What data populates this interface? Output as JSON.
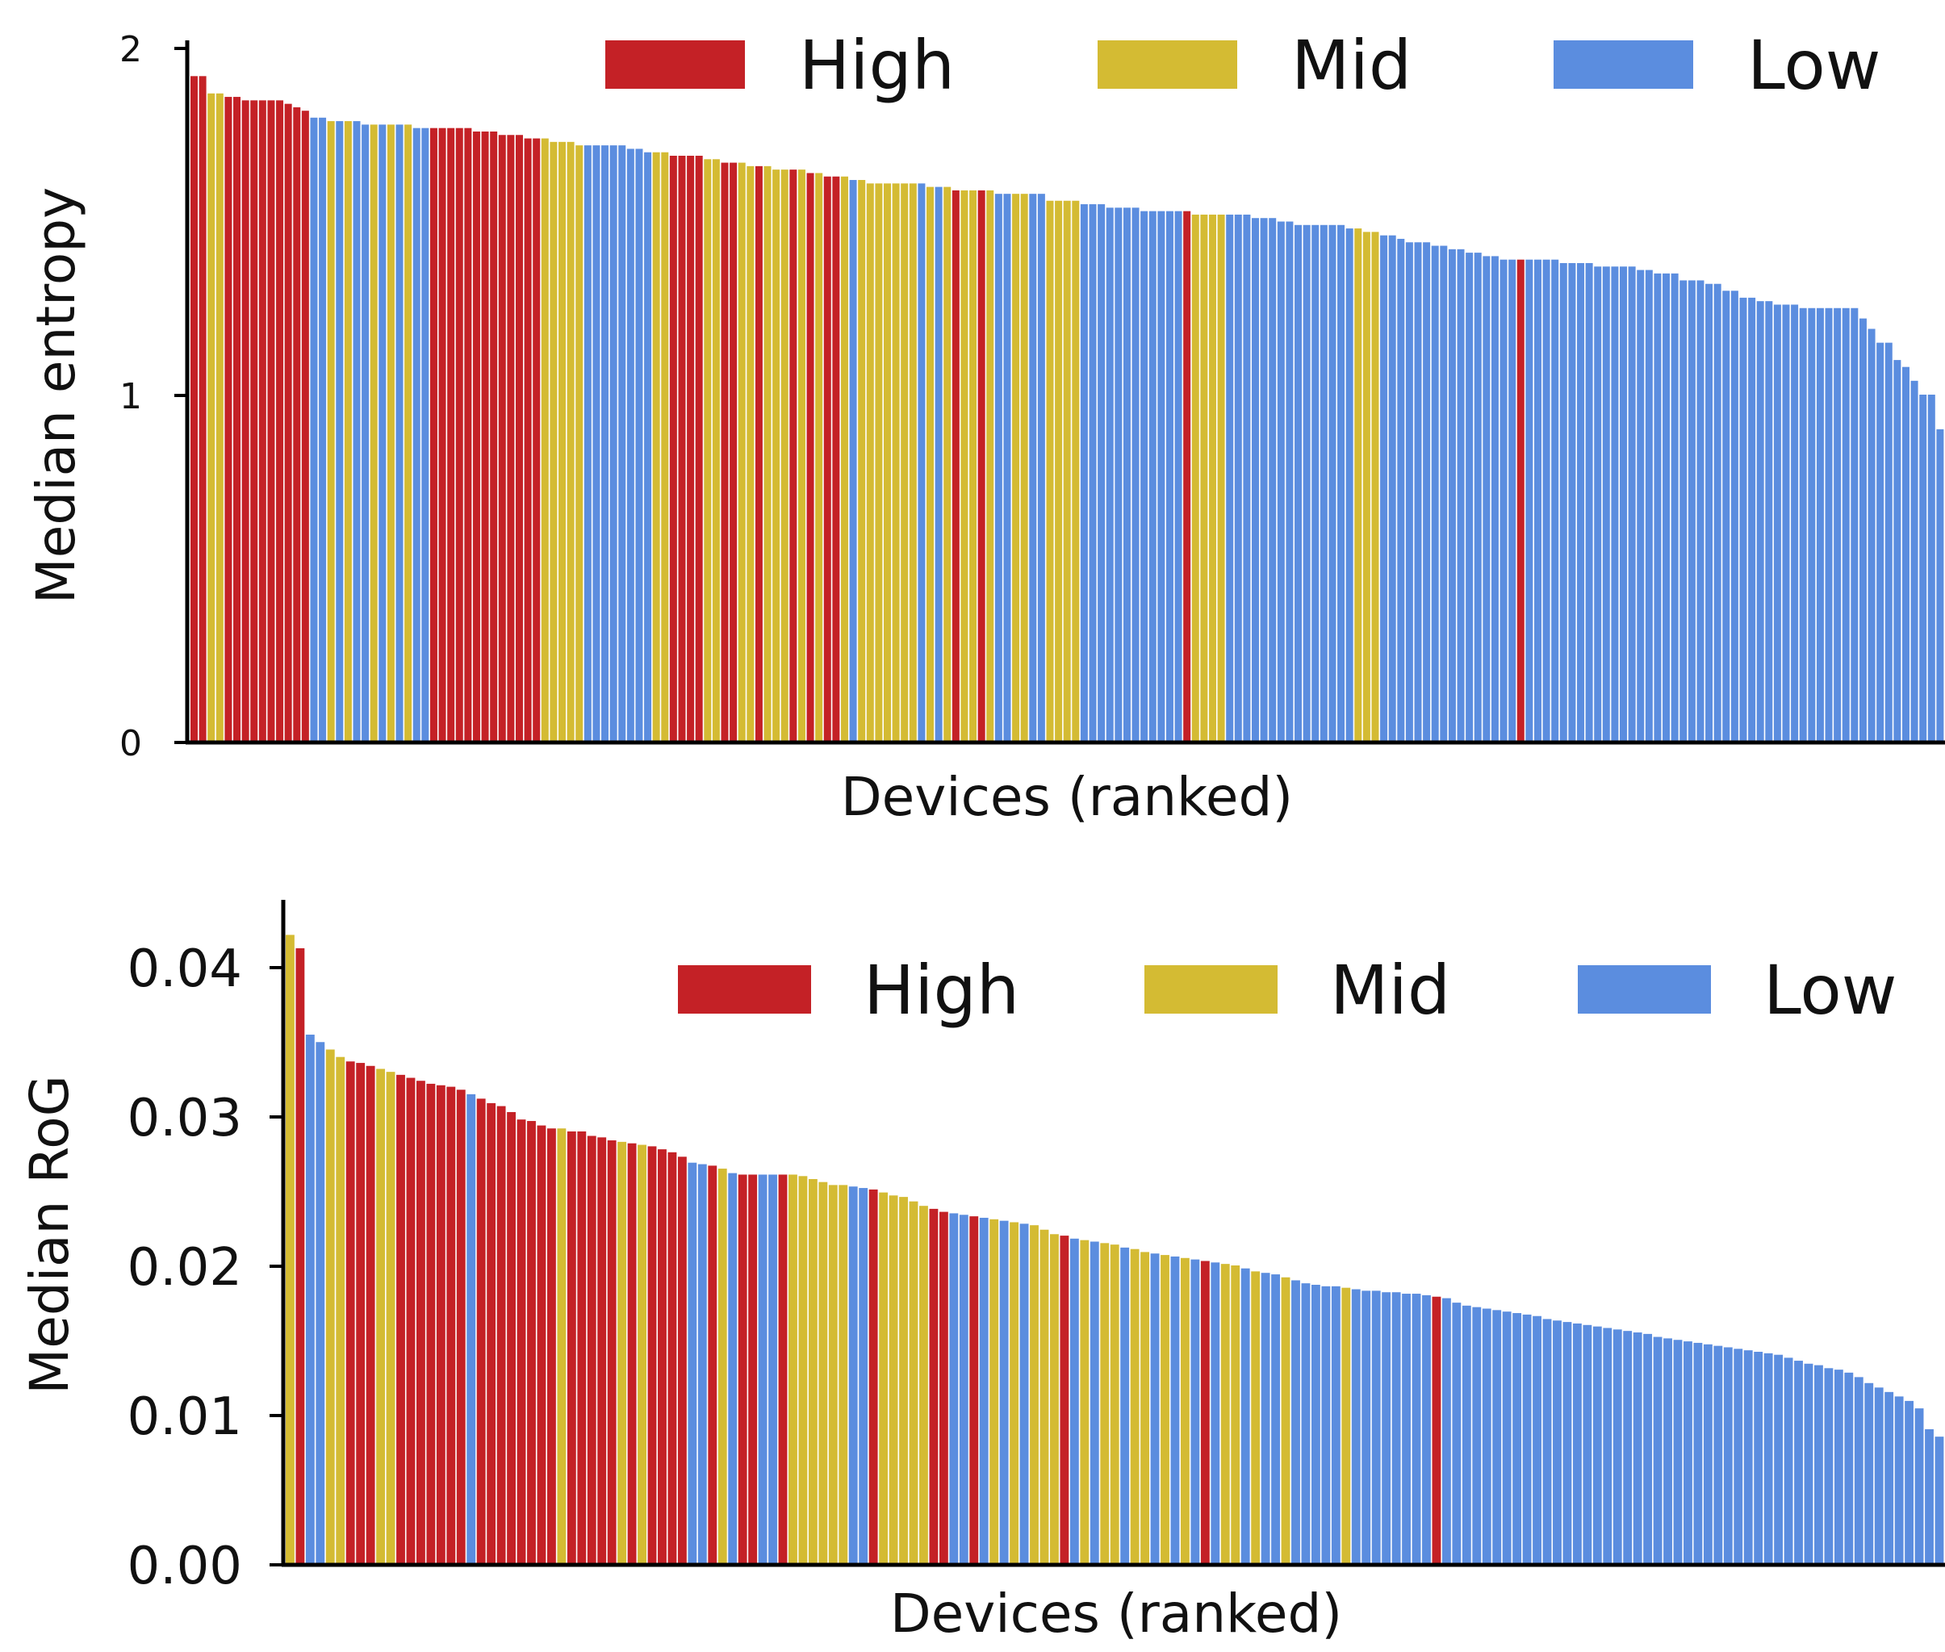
{
  "colors": {
    "High": "#c42126",
    "Mid": "#d4bb33",
    "Low": "#5b8ddf",
    "axis": "#000000"
  },
  "legend": [
    {
      "key": "High",
      "label": "High"
    },
    {
      "key": "Mid",
      "label": "Mid"
    },
    {
      "key": "Low",
      "label": "Low"
    }
  ],
  "chart_data": [
    {
      "type": "bar",
      "xlabel": "Devices (ranked)",
      "ylabel": "Median entropy",
      "ylim": [
        0,
        2
      ],
      "yticks": [
        0,
        1,
        2
      ],
      "ytick_labels": [
        "0",
        "1",
        "2"
      ],
      "legend_position": "top",
      "grid": false,
      "values": [
        1.92,
        1.92,
        1.87,
        1.87,
        1.86,
        1.86,
        1.85,
        1.85,
        1.85,
        1.85,
        1.85,
        1.84,
        1.83,
        1.82,
        1.8,
        1.8,
        1.79,
        1.79,
        1.79,
        1.79,
        1.78,
        1.78,
        1.78,
        1.78,
        1.78,
        1.78,
        1.77,
        1.77,
        1.77,
        1.77,
        1.77,
        1.77,
        1.77,
        1.76,
        1.76,
        1.76,
        1.75,
        1.75,
        1.75,
        1.74,
        1.74,
        1.74,
        1.73,
        1.73,
        1.73,
        1.72,
        1.72,
        1.72,
        1.72,
        1.72,
        1.72,
        1.71,
        1.71,
        1.7,
        1.7,
        1.7,
        1.69,
        1.69,
        1.69,
        1.69,
        1.68,
        1.68,
        1.67,
        1.67,
        1.67,
        1.66,
        1.66,
        1.66,
        1.65,
        1.65,
        1.65,
        1.65,
        1.64,
        1.64,
        1.63,
        1.63,
        1.63,
        1.62,
        1.62,
        1.61,
        1.61,
        1.61,
        1.61,
        1.61,
        1.61,
        1.61,
        1.6,
        1.6,
        1.6,
        1.59,
        1.59,
        1.59,
        1.59,
        1.59,
        1.58,
        1.58,
        1.58,
        1.58,
        1.58,
        1.58,
        1.56,
        1.56,
        1.56,
        1.56,
        1.55,
        1.55,
        1.55,
        1.54,
        1.54,
        1.54,
        1.54,
        1.53,
        1.53,
        1.53,
        1.53,
        1.53,
        1.53,
        1.52,
        1.52,
        1.52,
        1.52,
        1.52,
        1.52,
        1.52,
        1.51,
        1.51,
        1.51,
        1.5,
        1.5,
        1.49,
        1.49,
        1.49,
        1.49,
        1.49,
        1.49,
        1.48,
        1.48,
        1.47,
        1.47,
        1.46,
        1.46,
        1.45,
        1.44,
        1.44,
        1.44,
        1.43,
        1.43,
        1.42,
        1.42,
        1.41,
        1.41,
        1.4,
        1.4,
        1.39,
        1.39,
        1.39,
        1.39,
        1.39,
        1.39,
        1.39,
        1.38,
        1.38,
        1.38,
        1.38,
        1.37,
        1.37,
        1.37,
        1.37,
        1.37,
        1.36,
        1.36,
        1.35,
        1.35,
        1.35,
        1.33,
        1.33,
        1.33,
        1.32,
        1.32,
        1.3,
        1.3,
        1.28,
        1.28,
        1.27,
        1.27,
        1.26,
        1.26,
        1.26,
        1.25,
        1.25,
        1.25,
        1.25,
        1.25,
        1.25,
        1.25,
        1.22,
        1.19,
        1.15,
        1.15,
        1.1,
        1.08,
        1.04,
        1.0,
        1.0,
        0.9
      ],
      "groups": [
        "High",
        "High",
        "Mid",
        "Mid",
        "High",
        "High",
        "High",
        "High",
        "High",
        "High",
        "High",
        "High",
        "High",
        "High",
        "Low",
        "Low",
        "Mid",
        "Low",
        "Mid",
        "Low",
        "Low",
        "Mid",
        "Low",
        "Mid",
        "Low",
        "Mid",
        "Low",
        "Low",
        "High",
        "High",
        "High",
        "High",
        "High",
        "High",
        "High",
        "High",
        "High",
        "High",
        "High",
        "High",
        "High",
        "Mid",
        "Mid",
        "Mid",
        "Mid",
        "Mid",
        "Low",
        "Low",
        "Low",
        "Low",
        "Low",
        "Low",
        "Low",
        "Low",
        "Mid",
        "Mid",
        "High",
        "High",
        "High",
        "High",
        "Mid",
        "Mid",
        "High",
        "High",
        "Mid",
        "Mid",
        "High",
        "Mid",
        "Mid",
        "Mid",
        "High",
        "Mid",
        "High",
        "Mid",
        "High",
        "High",
        "Mid",
        "Low",
        "Mid",
        "Mid",
        "Mid",
        "Mid",
        "Mid",
        "Mid",
        "Mid",
        "Low",
        "Mid",
        "Low",
        "Mid",
        "High",
        "Mid",
        "Mid",
        "High",
        "Mid",
        "Low",
        "Low",
        "Mid",
        "Mid",
        "Low",
        "Low",
        "Mid",
        "Mid",
        "Mid",
        "Mid",
        "Low",
        "Low",
        "Low",
        "Low",
        "Low",
        "Low",
        "Low",
        "Low",
        "Low",
        "Low",
        "Low",
        "Low",
        "High",
        "Mid",
        "Mid",
        "Mid",
        "Mid",
        "Low",
        "Low",
        "Low",
        "Low",
        "Low",
        "Low",
        "Low",
        "Low",
        "Low",
        "Low",
        "Low",
        "Low",
        "Low",
        "Low",
        "Low",
        "Mid",
        "Mid",
        "Mid",
        "Low",
        "Low",
        "Low",
        "Low",
        "Low",
        "Low",
        "Low",
        "Low",
        "Low",
        "Low",
        "Low",
        "Low",
        "Low",
        "Low",
        "Low",
        "Low",
        "High",
        "Low",
        "Low",
        "Low",
        "Low",
        "Low",
        "Low",
        "Low",
        "Low",
        "Low",
        "Low",
        "Low",
        "Low",
        "Low",
        "Low",
        "Low",
        "Low",
        "Low",
        "Low",
        "Low",
        "Low",
        "Low",
        "Low",
        "Low",
        "Low",
        "Low",
        "Low",
        "Low",
        "Low",
        "Low",
        "Low",
        "Low",
        "Low",
        "Low",
        "Low",
        "Low",
        "Low",
        "Low",
        "Low",
        "Low",
        "Low",
        "Low",
        "Low",
        "Low",
        "Low",
        "Low",
        "Low",
        "Low",
        "Low",
        "Low",
        "Low",
        "Low"
      ]
    },
    {
      "type": "bar",
      "xlabel": "Devices (ranked)",
      "ylabel": "Median RoG",
      "ylim": [
        0,
        0.0445
      ],
      "yticks": [
        0,
        0.01,
        0.02,
        0.03,
        0.04
      ],
      "ytick_labels": [
        "0.00",
        "0.01",
        "0.02",
        "0.03",
        "0.04"
      ],
      "legend_position": "top",
      "grid": false,
      "values": [
        0.0422,
        0.0413,
        0.0355,
        0.035,
        0.0345,
        0.034,
        0.0337,
        0.0336,
        0.0334,
        0.0332,
        0.033,
        0.0328,
        0.0326,
        0.0324,
        0.0322,
        0.0321,
        0.032,
        0.0318,
        0.0315,
        0.0312,
        0.0309,
        0.0307,
        0.0303,
        0.0298,
        0.0297,
        0.0294,
        0.0292,
        0.0292,
        0.029,
        0.029,
        0.0287,
        0.0286,
        0.0284,
        0.0283,
        0.0282,
        0.0281,
        0.028,
        0.0278,
        0.0276,
        0.0273,
        0.0269,
        0.0268,
        0.0267,
        0.0265,
        0.0262,
        0.0261,
        0.0261,
        0.0261,
        0.0261,
        0.0261,
        0.0261,
        0.026,
        0.0258,
        0.0256,
        0.0254,
        0.0254,
        0.0253,
        0.0252,
        0.0251,
        0.0249,
        0.0247,
        0.0246,
        0.0243,
        0.024,
        0.0238,
        0.0236,
        0.0235,
        0.0234,
        0.0233,
        0.0232,
        0.0231,
        0.023,
        0.0229,
        0.0228,
        0.0227,
        0.0224,
        0.0221,
        0.022,
        0.0218,
        0.0217,
        0.0216,
        0.0215,
        0.0214,
        0.0212,
        0.0211,
        0.0209,
        0.0208,
        0.0207,
        0.0206,
        0.0205,
        0.0204,
        0.0203,
        0.0202,
        0.0201,
        0.02,
        0.0198,
        0.0196,
        0.0195,
        0.0194,
        0.0192,
        0.019,
        0.0188,
        0.0187,
        0.0186,
        0.0186,
        0.0185,
        0.0184,
        0.0183,
        0.0183,
        0.0182,
        0.0182,
        0.0181,
        0.0181,
        0.018,
        0.0179,
        0.0178,
        0.0175,
        0.0173,
        0.0172,
        0.0171,
        0.017,
        0.0169,
        0.0168,
        0.0167,
        0.0166,
        0.0164,
        0.0163,
        0.0162,
        0.0161,
        0.016,
        0.0159,
        0.0158,
        0.0157,
        0.0156,
        0.0155,
        0.0154,
        0.0152,
        0.0151,
        0.015,
        0.0149,
        0.0148,
        0.0147,
        0.0146,
        0.0145,
        0.0144,
        0.0143,
        0.0142,
        0.0141,
        0.014,
        0.0138,
        0.0136,
        0.0134,
        0.0133,
        0.0131,
        0.013,
        0.0128,
        0.0125,
        0.0121,
        0.0118,
        0.0115,
        0.0112,
        0.0109,
        0.0104,
        0.009,
        0.0085
      ],
      "groups": [
        "Mid",
        "High",
        "Low",
        "Low",
        "Mid",
        "Mid",
        "High",
        "High",
        "High",
        "Mid",
        "Mid",
        "High",
        "High",
        "High",
        "High",
        "High",
        "High",
        "High",
        "Low",
        "High",
        "High",
        "High",
        "High",
        "High",
        "High",
        "High",
        "High",
        "Mid",
        "High",
        "High",
        "High",
        "High",
        "High",
        "Mid",
        "High",
        "Mid",
        "High",
        "High",
        "High",
        "High",
        "Low",
        "Low",
        "High",
        "Mid",
        "Low",
        "High",
        "High",
        "Low",
        "Low",
        "High",
        "Mid",
        "Mid",
        "Mid",
        "Mid",
        "Mid",
        "Mid",
        "Low",
        "Low",
        "High",
        "Mid",
        "Mid",
        "Mid",
        "Mid",
        "Mid",
        "High",
        "High",
        "Low",
        "Low",
        "High",
        "Low",
        "Mid",
        "Low",
        "Mid",
        "Low",
        "Mid",
        "Mid",
        "Mid",
        "High",
        "Low",
        "Mid",
        "Low",
        "Mid",
        "Mid",
        "Low",
        "Mid",
        "Mid",
        "Low",
        "Mid",
        "Low",
        "Mid",
        "Low",
        "High",
        "Low",
        "Mid",
        "Mid",
        "Low",
        "Mid",
        "Low",
        "Low",
        "Mid",
        "Low",
        "Low",
        "Low",
        "Low",
        "Low",
        "Mid",
        "Low",
        "Low",
        "Low",
        "Low",
        "Low",
        "Low",
        "Low",
        "Low",
        "High",
        "Low",
        "Low",
        "Low",
        "Low",
        "Low",
        "Low",
        "Low",
        "Low",
        "Low",
        "Low",
        "Low",
        "Low",
        "Low",
        "Low",
        "Low",
        "Low",
        "Low",
        "Low",
        "Low",
        "Low",
        "Low",
        "Low",
        "Low",
        "Low",
        "Low",
        "Low",
        "Low",
        "Low",
        "Low",
        "Low",
        "Low",
        "Low",
        "Low",
        "Low",
        "Low",
        "Low",
        "Low",
        "Low",
        "Low",
        "Low",
        "Low",
        "Low",
        "Low",
        "Low",
        "Low",
        "Low",
        "Low",
        "Low",
        "Low",
        "Low",
        "Low",
        "Low"
      ]
    }
  ]
}
